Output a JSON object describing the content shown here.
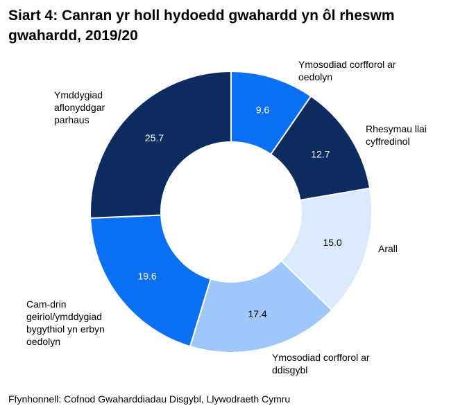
{
  "chart_data": {
    "type": "donut",
    "title": "Siart 4: Canran yr holl hydoedd gwahardd yn ôl rheswm gwahardd, 2019/20",
    "categories": [
      "Ymosodiad corfforol ar oedolyn",
      "Rhesymau llai cyffredinol",
      "Arall",
      "Ymosodiad corfforol ar ddisgybl",
      "Cam-drin geiriol/ymddygiad bygythiol yn erbyn oedolyn",
      "Ymddygiad aflonyddgar parhaus"
    ],
    "values": [
      9.6,
      12.7,
      15.0,
      17.4,
      19.6,
      25.7
    ],
    "value_labels": [
      "9.6",
      "12.7",
      "15.0",
      "17.4",
      "19.6",
      "25.7"
    ],
    "colors": [
      "#0b6ff2",
      "#0c2b5e",
      "#dbe9fc",
      "#9fc7fa",
      "#0b6ff2",
      "#0c2b5e"
    ],
    "source": "Ffynhonnell: Cofnod Gwaharddiadau Disgybl, Llywodraeth Cymru"
  }
}
